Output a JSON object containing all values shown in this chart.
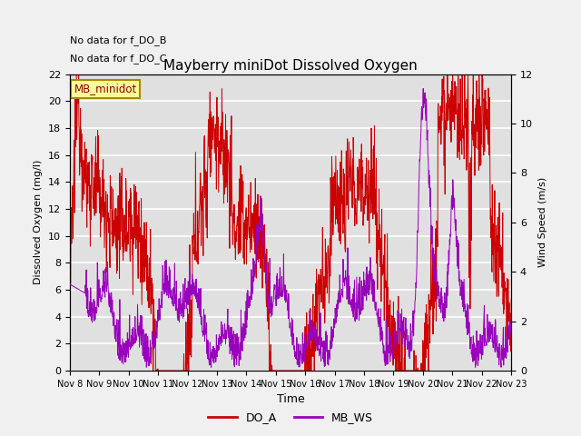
{
  "title": "Mayberry miniDot Dissolved Oxygen",
  "xlabel": "Time",
  "ylabel_left": "Dissolved Oxygen (mg/l)",
  "ylabel_right": "Wind Speed (m/s)",
  "annotation1": "No data for f_DO_B",
  "annotation2": "No data for f_DO_C",
  "legend_box_label": "MB_minidot",
  "legend_entries": [
    "DO_A",
    "MB_WS"
  ],
  "legend_colors": [
    "#cc0000",
    "#9900bb"
  ],
  "ylim_left": [
    0,
    22
  ],
  "ylim_right": [
    0,
    12
  ],
  "yticks_left": [
    0,
    2,
    4,
    6,
    8,
    10,
    12,
    14,
    16,
    18,
    20,
    22
  ],
  "yticks_right": [
    0,
    2,
    4,
    6,
    8,
    10,
    12
  ],
  "xtick_labels": [
    "Nov 8",
    "Nov 9",
    "Nov 10",
    "Nov 11",
    "Nov 12",
    "Nov 13",
    "Nov 14",
    "Nov 15",
    "Nov 16",
    "Nov 17",
    "Nov 18",
    "Nov 19",
    "Nov 20",
    "Nov 21",
    "Nov 22",
    "Nov 23"
  ],
  "bg_color": "#f0f0f0",
  "plot_bg_color": "#e0e0e0",
  "line_color_DO": "#cc0000",
  "line_color_WS": "#9900bb",
  "grid_color": "#ffffff",
  "figsize": [
    6.4,
    4.8
  ],
  "dpi": 100
}
